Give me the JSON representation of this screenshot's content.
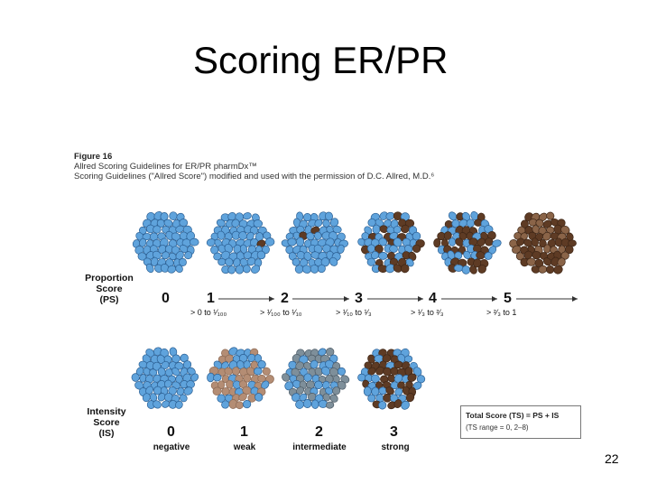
{
  "slide": {
    "title": "Scoring ER/PR",
    "page_number": "22"
  },
  "figure": {
    "number": "Figure 16",
    "caption_line1": "Allred Scoring Guidelines for ER/PR pharmDx™",
    "caption_line2": "Scoring Guidelines (\"Allred Score\") modified and used with the permission of D.C. Allred, M.D.⁶"
  },
  "proportion": {
    "label_lines": [
      "Proportion",
      "Score",
      "(PS)"
    ],
    "scores": [
      {
        "score": "0",
        "range": "",
        "brown_fraction": 0
      },
      {
        "score": "1",
        "range": "> 0 to ¹⁄₁₀₀",
        "brown_fraction": 0.01
      },
      {
        "score": "2",
        "range": "> ¹⁄₁₀₀ to ¹⁄₁₀",
        "brown_fraction": 0.06
      },
      {
        "score": "3",
        "range": "> ¹⁄₁₀ to ¹⁄₃",
        "brown_fraction": 0.25
      },
      {
        "score": "4",
        "range": "> ¹⁄₃ to ²⁄₃",
        "brown_fraction": 0.5
      },
      {
        "score": "5",
        "range": "> ²⁄₃ to 1",
        "brown_fraction": 1
      }
    ]
  },
  "intensity": {
    "label_lines": [
      "Intensity",
      "Score",
      "(IS)"
    ],
    "scores": [
      {
        "score": "0",
        "label": "negative",
        "stain": "none"
      },
      {
        "score": "1",
        "label": "weak",
        "stain": "weak"
      },
      {
        "score": "2",
        "label": "intermediate",
        "stain": "intermediate"
      },
      {
        "score": "3",
        "label": "strong",
        "stain": "strong"
      }
    ]
  },
  "total": {
    "line1": "Total Score (TS) = PS + IS",
    "line2": "(TS range = 0, 2–8)"
  },
  "colors": {
    "blue_cell": "#5fa3dc",
    "blue_outline": "#2b5f93",
    "brown_strong": "#5e3b24",
    "brown_mid": "#8a6448",
    "brown_weak": "#b48d74"
  }
}
